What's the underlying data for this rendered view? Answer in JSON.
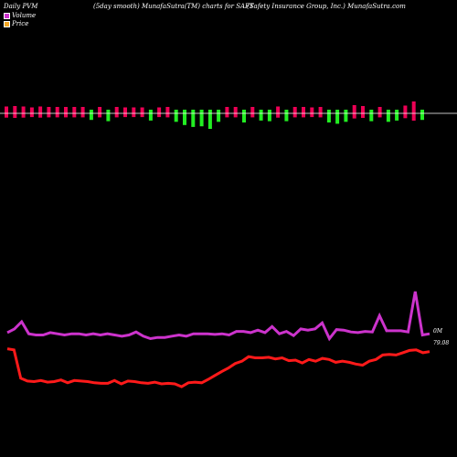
{
  "header": {
    "left": "Daily PVM",
    "middle": "(5day smooth) MunafaSutra(TM) charts for SAFT",
    "right": "(Safety Insurance Group, Inc.) MunafaSutra.com"
  },
  "legend": [
    {
      "label": "Volume",
      "color": "#cc33cc"
    },
    {
      "label": "Price",
      "color": "#f5a623"
    }
  ],
  "colors": {
    "up_bar": "#ee0055",
    "up_bar_top": "#cc33cc",
    "down_bar": "#22ee22",
    "volume_line": "#cc33cc",
    "price_line": "#ff1a1a",
    "baseline": "#ffffff"
  },
  "chart_data": {
    "type": "line",
    "series_labels": {
      "volume_last": "0M",
      "price_last": "79.08"
    },
    "bars": [
      {
        "dir": "up",
        "size": 0.45
      },
      {
        "dir": "up",
        "size": 0.5
      },
      {
        "dir": "up",
        "size": 0.45
      },
      {
        "dir": "up",
        "size": 0.35
      },
      {
        "dir": "up",
        "size": 0.45
      },
      {
        "dir": "up",
        "size": 0.4
      },
      {
        "dir": "up",
        "size": 0.4
      },
      {
        "dir": "up",
        "size": 0.4
      },
      {
        "dir": "up",
        "size": 0.4
      },
      {
        "dir": "up",
        "size": 0.4
      },
      {
        "dir": "down",
        "size": 0.3
      },
      {
        "dir": "up",
        "size": 0.4
      },
      {
        "dir": "down",
        "size": 0.4
      },
      {
        "dir": "up",
        "size": 0.4
      },
      {
        "dir": "up",
        "size": 0.35
      },
      {
        "dir": "up",
        "size": 0.35
      },
      {
        "dir": "up",
        "size": 0.35
      },
      {
        "dir": "down",
        "size": 0.35
      },
      {
        "dir": "up",
        "size": 0.35
      },
      {
        "dir": "up",
        "size": 0.4
      },
      {
        "dir": "down",
        "size": 0.45
      },
      {
        "dir": "down",
        "size": 0.7
      },
      {
        "dir": "down",
        "size": 0.85
      },
      {
        "dir": "down",
        "size": 0.8
      },
      {
        "dir": "down",
        "size": 1.0
      },
      {
        "dir": "down",
        "size": 0.45
      },
      {
        "dir": "up",
        "size": 0.4
      },
      {
        "dir": "up",
        "size": 0.4
      },
      {
        "dir": "down",
        "size": 0.5
      },
      {
        "dir": "up",
        "size": 0.4
      },
      {
        "dir": "down",
        "size": 0.35
      },
      {
        "dir": "down",
        "size": 0.4
      },
      {
        "dir": "up",
        "size": 0.45
      },
      {
        "dir": "down",
        "size": 0.4
      },
      {
        "dir": "up",
        "size": 0.4
      },
      {
        "dir": "up",
        "size": 0.4
      },
      {
        "dir": "up",
        "size": 0.35
      },
      {
        "dir": "up",
        "size": 0.4
      },
      {
        "dir": "down",
        "size": 0.5
      },
      {
        "dir": "down",
        "size": 0.6
      },
      {
        "dir": "down",
        "size": 0.45
      },
      {
        "dir": "up",
        "size": 0.6
      },
      {
        "dir": "up",
        "size": 0.5
      },
      {
        "dir": "down",
        "size": 0.4
      },
      {
        "dir": "up",
        "size": 0.4
      },
      {
        "dir": "down",
        "size": 0.45
      },
      {
        "dir": "down",
        "size": 0.35
      },
      {
        "dir": "up",
        "size": 0.55
      },
      {
        "dir": "up",
        "size": 1.0
      },
      {
        "dir": "down",
        "size": 0.3
      }
    ],
    "volume": [
      0.32,
      0.38,
      0.5,
      0.3,
      0.28,
      0.28,
      0.32,
      0.3,
      0.28,
      0.3,
      0.3,
      0.28,
      0.3,
      0.28,
      0.3,
      0.28,
      0.26,
      0.28,
      0.33,
      0.26,
      0.22,
      0.24,
      0.24,
      0.26,
      0.28,
      0.26,
      0.3,
      0.3,
      0.3,
      0.29,
      0.3,
      0.28,
      0.34,
      0.34,
      0.32,
      0.36,
      0.32,
      0.42,
      0.3,
      0.34,
      0.27,
      0.38,
      0.36,
      0.38,
      0.48,
      0.22,
      0.37,
      0.36,
      0.33,
      0.32,
      0.34,
      0.33,
      0.6,
      0.35,
      0.35,
      0.35,
      0.33,
      1.0,
      0.28,
      0.3
    ],
    "price": [
      0.62,
      0.6,
      0.1,
      0.05,
      0.04,
      0.06,
      0.03,
      0.04,
      0.07,
      0.02,
      0.06,
      0.05,
      0.04,
      0.02,
      0.01,
      0.01,
      0.06,
      0.0,
      0.05,
      0.04,
      0.02,
      0.01,
      0.03,
      0.0,
      0.01,
      0.0,
      -0.05,
      0.02,
      0.03,
      0.02,
      0.08,
      0.15,
      0.22,
      0.28,
      0.36,
      0.4,
      0.48,
      0.46,
      0.46,
      0.47,
      0.44,
      0.46,
      0.41,
      0.42,
      0.37,
      0.43,
      0.4,
      0.45,
      0.43,
      0.38,
      0.4,
      0.38,
      0.35,
      0.33,
      0.4,
      0.43,
      0.51,
      0.52,
      0.51,
      0.55,
      0.59,
      0.6,
      0.55,
      0.57
    ]
  }
}
